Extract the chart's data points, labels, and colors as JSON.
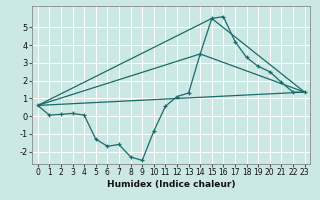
{
  "title": "",
  "xlabel": "Humidex (Indice chaleur)",
  "bg_color": "#cce8e5",
  "line_color": "#1a6b6b",
  "grid_color": "#ffffff",
  "xlim": [
    -0.5,
    23.5
  ],
  "ylim": [
    -2.7,
    6.2
  ],
  "yticks": [
    -2,
    -1,
    0,
    1,
    2,
    3,
    4,
    5
  ],
  "xticks": [
    0,
    1,
    2,
    3,
    4,
    5,
    6,
    7,
    8,
    9,
    10,
    11,
    12,
    13,
    14,
    15,
    16,
    17,
    18,
    19,
    20,
    21,
    22,
    23
  ],
  "line1_x": [
    0,
    1,
    2,
    3,
    4,
    5,
    6,
    7,
    8,
    9,
    10,
    11,
    12,
    13,
    14,
    15,
    16,
    17,
    18,
    19,
    20,
    21,
    22,
    23
  ],
  "line1_y": [
    0.6,
    0.05,
    0.1,
    0.15,
    0.05,
    -1.3,
    -1.7,
    -1.6,
    -2.3,
    -2.5,
    -0.85,
    0.55,
    1.1,
    1.3,
    3.5,
    5.5,
    5.6,
    4.2,
    3.3,
    2.8,
    2.5,
    1.9,
    1.35,
    1.35
  ],
  "line2_x": [
    0,
    23
  ],
  "line2_y": [
    0.6,
    1.35
  ],
  "line3_x": [
    0,
    15,
    23
  ],
  "line3_y": [
    0.6,
    5.5,
    1.35
  ],
  "line4_x": [
    0,
    14,
    23
  ],
  "line4_y": [
    0.6,
    3.5,
    1.35
  ]
}
